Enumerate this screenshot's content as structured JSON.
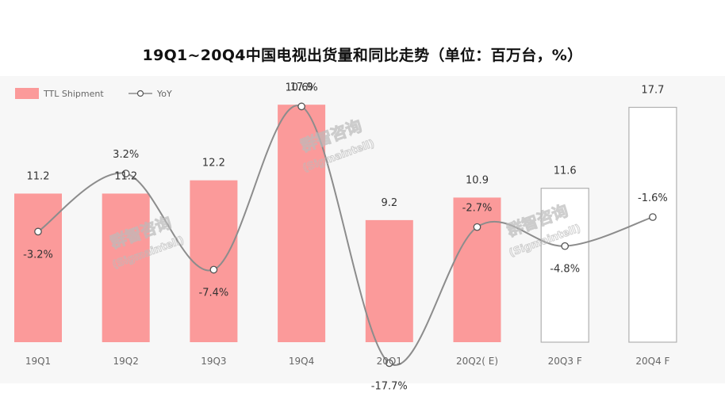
{
  "chart_data": {
    "type": "bar+line",
    "title": "19Q1~20Q4中国电视出货量和同比走势（单位：百万台，%）",
    "categories": [
      "19Q1",
      "19Q2",
      "19Q3",
      "19Q4",
      "20Q1",
      "20Q2( E)",
      "20Q3 F",
      "20Q4 F"
    ],
    "series": [
      {
        "name": "TTL Shipment",
        "type": "bar",
        "values": [
          11.2,
          11.2,
          12.2,
          17.9,
          9.2,
          10.9,
          11.6,
          17.7
        ],
        "labels": [
          "11.2",
          "11.2",
          "12.2",
          "17.9",
          "9.2",
          "10.9",
          "11.6",
          "17.7"
        ],
        "forecast": [
          false,
          false,
          false,
          false,
          false,
          false,
          true,
          true
        ]
      },
      {
        "name": "YoY",
        "type": "line",
        "values": [
          -3.2,
          3.2,
          -7.4,
          10.6,
          -17.7,
          -2.7,
          -4.8,
          -1.6
        ],
        "labels": [
          "-3.2%",
          "3.2%",
          "-7.4%",
          "10.6%",
          "-17.7%",
          "-2.7%",
          "-4.8%",
          "-1.6%"
        ]
      }
    ],
    "ylim": [
      0,
      20
    ],
    "y2lim": [
      -20,
      15
    ],
    "legend": [
      "TTL Shipment",
      "YoY"
    ],
    "colors": {
      "bar": "#fb9a9a",
      "forecast_edge": "#b0b0b0",
      "line": "#8c8c8c",
      "text": "#333333"
    },
    "watermark": [
      "群智咨询",
      "(Sigmaintell)"
    ]
  }
}
